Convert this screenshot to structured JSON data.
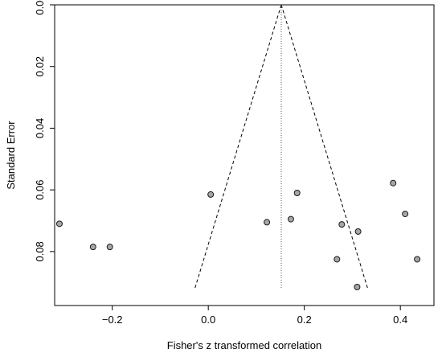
{
  "chart_data": {
    "type": "scatter",
    "title": "",
    "xlabel": "Fisher's z transformed correlation",
    "ylabel": "Standard Error",
    "xlim": [
      -0.32,
      0.47
    ],
    "ylim": [
      0.0,
      0.0975
    ],
    "y_reversed": true,
    "x_ticks": [
      -0.2,
      0.0,
      0.2,
      0.4
    ],
    "x_tick_labels": [
      "−0.2",
      "0.0",
      "0.2",
      "0.4"
    ],
    "y_ticks": [
      0.0,
      0.02,
      0.04,
      0.06,
      0.08
    ],
    "y_tick_labels": [
      "0.00",
      "0.02",
      "0.04",
      "0.06",
      "0.08"
    ],
    "grid": false,
    "legend": "none",
    "points": [
      {
        "x": -0.31,
        "y": 0.071
      },
      {
        "x": -0.24,
        "y": 0.0785
      },
      {
        "x": -0.205,
        "y": 0.0785
      },
      {
        "x": 0.005,
        "y": 0.0615
      },
      {
        "x": 0.122,
        "y": 0.0705
      },
      {
        "x": 0.172,
        "y": 0.0695
      },
      {
        "x": 0.185,
        "y": 0.061
      },
      {
        "x": 0.268,
        "y": 0.0825
      },
      {
        "x": 0.278,
        "y": 0.0712
      },
      {
        "x": 0.31,
        "y": 0.0915
      },
      {
        "x": 0.312,
        "y": 0.0735
      },
      {
        "x": 0.385,
        "y": 0.0578
      },
      {
        "x": 0.41,
        "y": 0.0678
      },
      {
        "x": 0.435,
        "y": 0.0825
      }
    ],
    "summary_estimate": 0.152,
    "funnel": {
      "apex": {
        "x": 0.152,
        "y": 0.0
      },
      "left_base": {
        "x": -0.028,
        "y": 0.092
      },
      "right_base": {
        "x": 0.332,
        "y": 0.092
      }
    },
    "colors": {
      "point_fill": "#a6a6a6",
      "point_stroke": "#1a1a1a",
      "axis": "#000000",
      "funnel": "#000000",
      "estimate_line": "#555555"
    }
  }
}
